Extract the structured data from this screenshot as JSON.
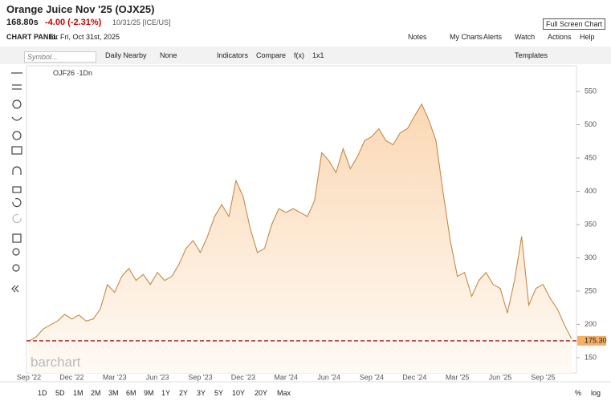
{
  "header": {
    "title": "Orange Juice Nov '25 (OJX25)",
    "price": "168.80s",
    "change": "-4.00 (-2.31%)",
    "date": "10/31/25 [ICE/US]",
    "fullscreen": "Full Screen Chart",
    "panel": "CHART PANEL",
    "panel_date": "for Fri, Oct 31st, 2025",
    "links": [
      "Notes",
      "My Charts",
      "Alerts",
      "Watch",
      "Actions",
      "Help"
    ]
  },
  "toolbar": {
    "symbol": "Symbol...",
    "items": [
      "Daily Nearby",
      "None",
      "Indicators",
      "Compare",
      "f(x)",
      "1x1"
    ],
    "templates": "Templates"
  },
  "chart_data": {
    "type": "area",
    "legend": "OJF26 ·1Dn",
    "watermark": "barchart",
    "color": "#c48a45",
    "categories": [
      "Sep '22",
      null,
      null,
      null,
      null,
      null,
      "Dec '22",
      null,
      null,
      null,
      null,
      null,
      "Mar '23",
      null,
      null,
      null,
      null,
      null,
      "Jun '23",
      null,
      null,
      null,
      null,
      null,
      "Sep '23",
      null,
      null,
      null,
      null,
      null,
      "Dec '23",
      null,
      null,
      null,
      null,
      null,
      "Mar '24",
      null,
      null,
      null,
      null,
      null,
      "Jun '24",
      null,
      null,
      null,
      null,
      null,
      "Sep '24",
      null,
      null,
      null,
      null,
      null,
      "Dec '24",
      null,
      null,
      null,
      null,
      null,
      "Mar '25",
      null,
      null,
      null,
      null,
      null,
      "Jun '25",
      null,
      null,
      null,
      null,
      null,
      "Sep '25",
      null,
      null,
      null,
      null
    ],
    "values": [
      175,
      181,
      193,
      199,
      205,
      215,
      208,
      214,
      205,
      208,
      223,
      260,
      248,
      272,
      284,
      266,
      275,
      260,
      278,
      266,
      272,
      290,
      314,
      326,
      308,
      332,
      362,
      380,
      362,
      416,
      392,
      344,
      308,
      314,
      350,
      374,
      368,
      374,
      368,
      362,
      386,
      458,
      446,
      428,
      464,
      434,
      452,
      476,
      482,
      494,
      476,
      470,
      488,
      494,
      513,
      531,
      507,
      476,
      398,
      326,
      272,
      278,
      242,
      266,
      278,
      260,
      254,
      217,
      266,
      332,
      229,
      254,
      260,
      239,
      223,
      199,
      178
    ],
    "ylim": [
      127,
      585
    ],
    "yticks": [
      150,
      200,
      250,
      300,
      350,
      400,
      450,
      500,
      550
    ],
    "price_line": {
      "value": 175.3,
      "label": "175.30"
    }
  },
  "footer": {
    "periods": [
      "1D",
      "5D",
      "1M",
      "2M",
      "3M",
      "6M",
      "9M",
      "1Y",
      "2Y",
      "3Y",
      "5Y",
      "10Y",
      "20Y",
      "Max"
    ],
    "percent": "%",
    "log": "log"
  }
}
